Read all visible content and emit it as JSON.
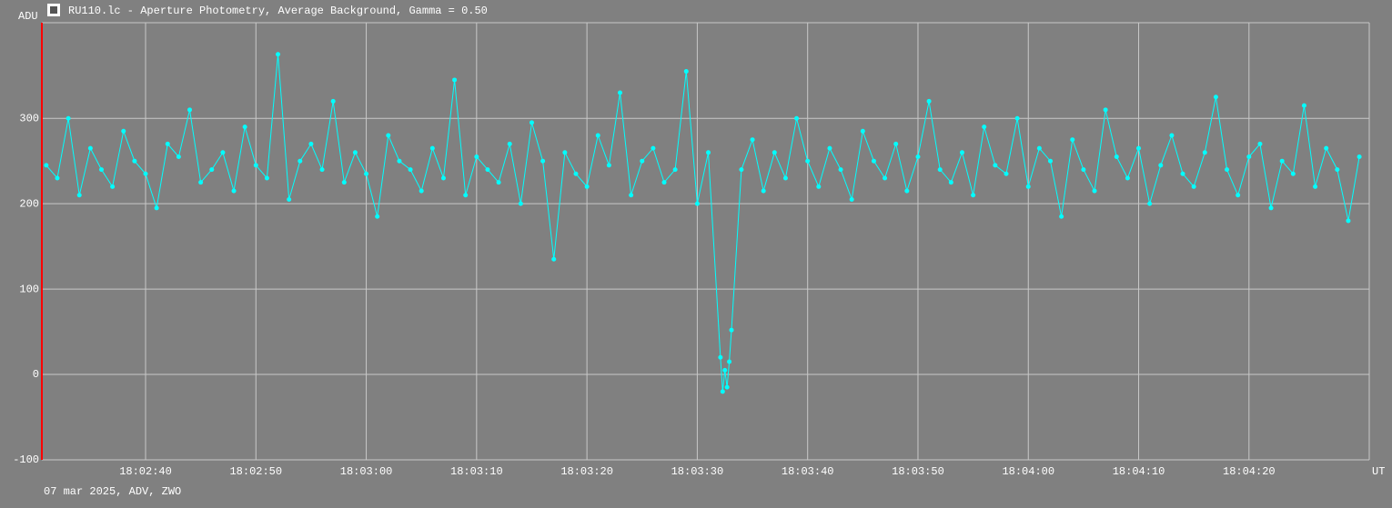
{
  "chart_data": {
    "type": "line",
    "title": "RU110.lc - Aperture Photometry, Average Background, Gamma = 0.50",
    "y_label": "ADU",
    "x_label": "UT",
    "footer": "07 mar 2025, ADV, ZWO",
    "x": [
      65551,
      65552,
      65553,
      65554,
      65555,
      65556,
      65557,
      65558,
      65559,
      65560,
      65561,
      65562,
      65563,
      65564,
      65565,
      65566,
      65567,
      65568,
      65569,
      65570,
      65571,
      65572,
      65573,
      65574,
      65575,
      65576,
      65577,
      65578,
      65579,
      65580,
      65581,
      65582,
      65583,
      65584,
      65585,
      65586,
      65587,
      65588,
      65589,
      65590,
      65591,
      65592,
      65593,
      65594,
      65595,
      65596,
      65597,
      65598,
      65599,
      65600,
      65601,
      65602,
      65603,
      65604,
      65605,
      65606,
      65607,
      65608,
      65609,
      65610,
      65611,
      65612.1,
      65612.3,
      65612.5,
      65612.7,
      65612.9,
      65613.1,
      65614,
      65615,
      65616,
      65617,
      65618,
      65619,
      65620,
      65621,
      65622,
      65623,
      65624,
      65625,
      65626,
      65627,
      65628,
      65629,
      65630,
      65631,
      65632,
      65633,
      65634,
      65635,
      65636,
      65637,
      65638,
      65639,
      65640,
      65641,
      65642,
      65643,
      65644,
      65645,
      65646,
      65647,
      65648,
      65649,
      65650,
      65651,
      65652,
      65653,
      65654,
      65655,
      65656,
      65657,
      65658,
      65659,
      65660,
      65661,
      65662,
      65663,
      65664,
      65665,
      65666,
      65667,
      65668,
      65669,
      65670
    ],
    "series": [
      {
        "name": "RU110",
        "color": "#00ffff",
        "values": [
          245,
          230,
          300,
          210,
          265,
          240,
          220,
          285,
          250,
          235,
          195,
          270,
          255,
          310,
          225,
          240,
          260,
          215,
          290,
          245,
          230,
          375,
          205,
          250,
          270,
          240,
          320,
          225,
          260,
          235,
          185,
          280,
          250,
          240,
          215,
          265,
          230,
          345,
          210,
          255,
          240,
          225,
          270,
          200,
          295,
          250,
          135,
          260,
          235,
          220,
          280,
          245,
          330,
          210,
          250,
          265,
          225,
          240,
          355,
          200,
          260,
          20,
          -20,
          5,
          -15,
          15,
          52,
          240,
          275,
          215,
          260,
          230,
          300,
          250,
          220,
          265,
          240,
          205,
          285,
          250,
          230,
          270,
          215,
          255,
          320,
          240,
          225,
          260,
          210,
          290,
          245,
          235,
          300,
          220,
          265,
          250,
          185,
          275,
          240,
          215,
          310,
          255,
          230,
          265,
          200,
          245,
          280,
          235,
          220,
          260,
          325,
          240,
          210,
          255,
          270,
          195,
          250,
          235,
          315,
          220,
          265,
          240,
          180,
          255
        ]
      }
    ],
    "xlim": [
      65550.6,
      65670.9
    ],
    "xticks": [
      {
        "value": 65560,
        "label": "18:02:40"
      },
      {
        "value": 65570,
        "label": "18:02:50"
      },
      {
        "value": 65580,
        "label": "18:03:00"
      },
      {
        "value": 65590,
        "label": "18:03:10"
      },
      {
        "value": 65600,
        "label": "18:03:20"
      },
      {
        "value": 65610,
        "label": "18:03:30"
      },
      {
        "value": 65620,
        "label": "18:03:40"
      },
      {
        "value": 65630,
        "label": "18:03:50"
      },
      {
        "value": 65640,
        "label": "18:04:00"
      },
      {
        "value": 65650,
        "label": "18:04:10"
      },
      {
        "value": 65660,
        "label": "18:04:20"
      }
    ],
    "ylim": [
      -100,
      412
    ],
    "yticks": [
      -100,
      0,
      100,
      200,
      300
    ],
    "grid": true
  }
}
